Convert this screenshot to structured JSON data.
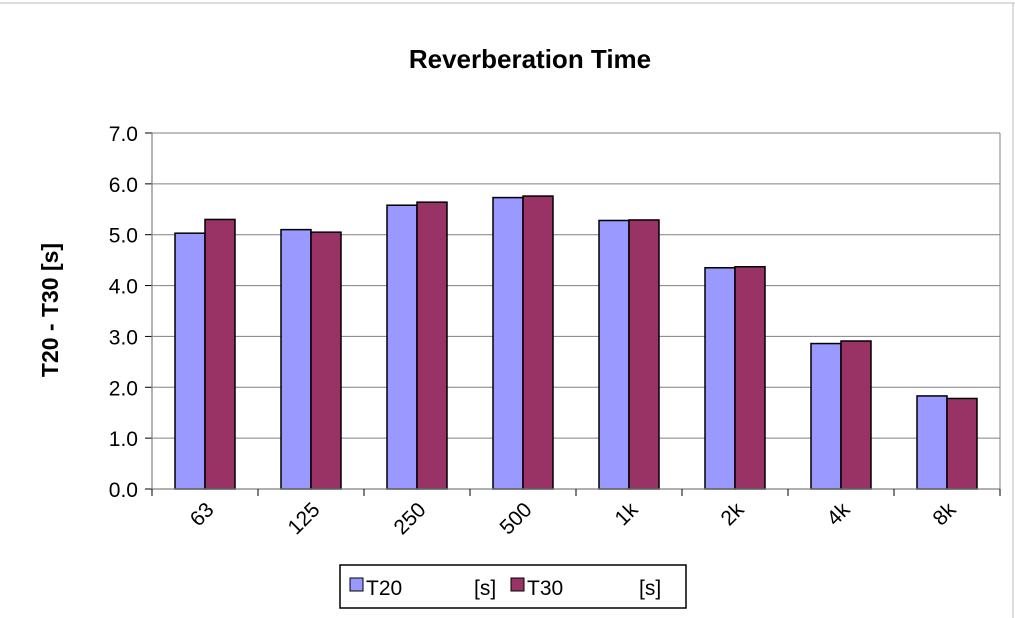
{
  "chart_data": {
    "type": "bar",
    "title": "Reverberation Time",
    "xlabel": "",
    "ylabel": "T20 - T30 [s]",
    "categories": [
      "63",
      "125",
      "250",
      "500",
      "1k",
      "2k",
      "4k",
      "8k"
    ],
    "series": [
      {
        "name": "T20",
        "unit": "[s]",
        "color": "#9999ff",
        "values": [
          5.03,
          5.1,
          5.58,
          5.73,
          5.28,
          4.35,
          2.86,
          1.83
        ]
      },
      {
        "name": "T30",
        "unit": "[s]",
        "color": "#993366",
        "values": [
          5.3,
          5.05,
          5.64,
          5.76,
          5.29,
          4.37,
          2.91,
          1.78
        ]
      }
    ],
    "ylim": [
      0,
      7
    ],
    "yticks": [
      "0.0",
      "1.0",
      "2.0",
      "3.0",
      "4.0",
      "5.0",
      "6.0",
      "7.0"
    ],
    "grid": true,
    "legend_position": "bottom"
  }
}
